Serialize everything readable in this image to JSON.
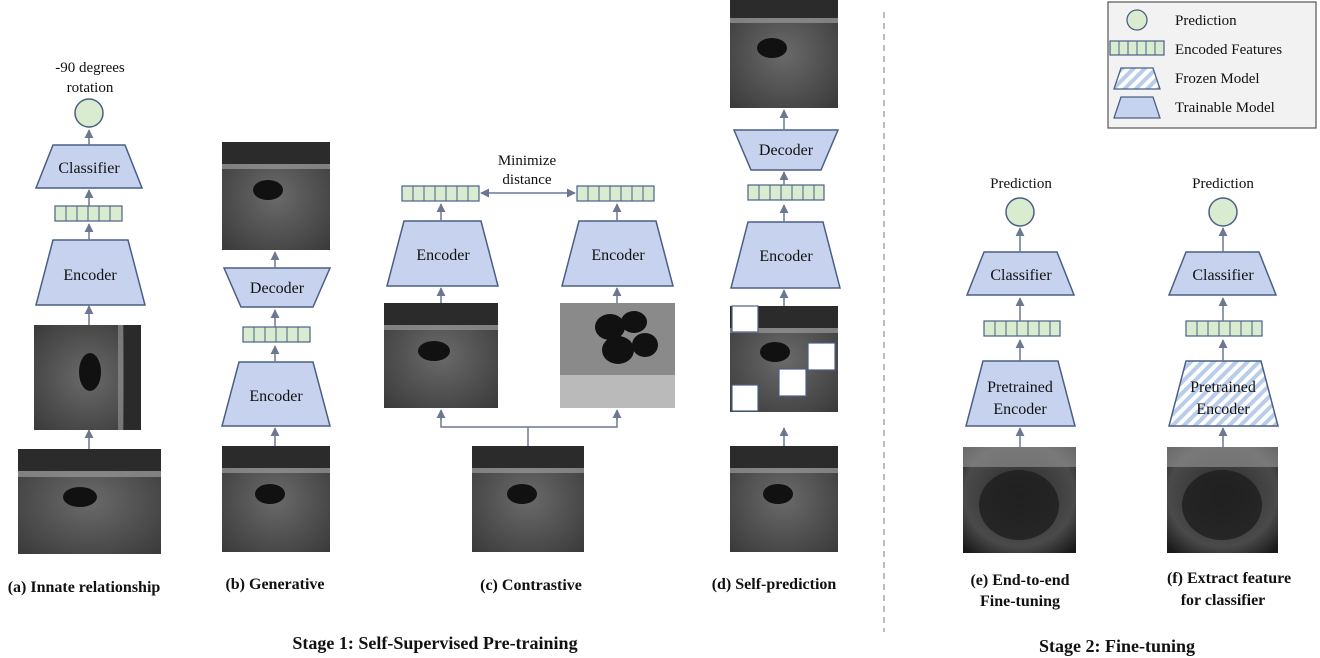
{
  "colors": {
    "model_fill": "#c7d3ee",
    "model_stroke": "#4a5f86",
    "feature_fill": "#d9ecd0",
    "prediction_fill": "#d9ecd0",
    "frozen_stripe": "#b9cdea",
    "arrow": "#6b7890",
    "divider": "#999999"
  },
  "legend": {
    "prediction": "Prediction",
    "encoded_features": "Encoded Features",
    "frozen_model": "Frozen Model",
    "trainable_model": "Trainable Model"
  },
  "panel_a": {
    "output": [
      "-90 degrees",
      "rotation"
    ],
    "classifier": "Classifier",
    "encoder": "Encoder",
    "caption": "(a) Innate relationship"
  },
  "panel_b": {
    "decoder": "Decoder",
    "encoder": "Encoder",
    "caption": "(b) Generative"
  },
  "panel_c": {
    "distance": [
      "Minimize",
      "distance"
    ],
    "encoder_left": "Encoder",
    "encoder_right": "Encoder",
    "caption": "(c) Contrastive"
  },
  "panel_d": {
    "decoder": "Decoder",
    "encoder": "Encoder",
    "caption": "(d) Self-prediction"
  },
  "panel_e": {
    "prediction": "Prediction",
    "classifier": "Classifier",
    "encoder": [
      "Pretrained",
      "Encoder"
    ],
    "caption": [
      "(e) End-to-end",
      "Fine-tuning"
    ]
  },
  "panel_f": {
    "prediction": "Prediction",
    "classifier": "Classifier",
    "encoder": [
      "Pretrained",
      "Encoder"
    ],
    "caption": [
      "(f) Extract feature",
      "for classifier"
    ]
  },
  "stages": {
    "stage1": "Stage 1:  Self-Supervised Pre-training",
    "stage2": "Stage 2: Fine-tuning"
  }
}
